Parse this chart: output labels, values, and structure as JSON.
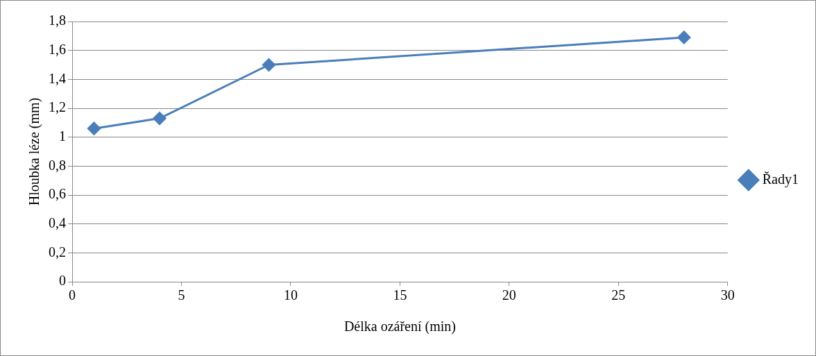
{
  "chart_data": {
    "type": "line",
    "xlabel": "Délka ozáření (min)",
    "ylabel": "Hloubka léze (mm)",
    "x": [
      1,
      4,
      9,
      28
    ],
    "series": [
      {
        "name": "Řady1",
        "color": "#4a7ebb",
        "values": [
          1.06,
          1.13,
          1.5,
          1.69
        ]
      }
    ],
    "xlim": [
      0,
      30
    ],
    "xticks": [
      0,
      5,
      10,
      15,
      20,
      25,
      30
    ],
    "ylim": [
      0,
      1.8
    ],
    "yticks": [
      0,
      {
        "value": 0.2,
        "label": "0,2"
      },
      {
        "value": 0.4,
        "label": "0,4"
      },
      {
        "value": 0.6,
        "label": "0,6"
      },
      {
        "value": 0.8,
        "label": "0,8"
      },
      1,
      {
        "value": 1.2,
        "label": "1,2"
      },
      {
        "value": 1.4,
        "label": "1,4"
      },
      {
        "value": 1.6,
        "label": "1,6"
      },
      {
        "value": 1.8,
        "label": "1,8"
      }
    ],
    "grid": "y",
    "legend": "right",
    "marker": "diamond",
    "line_style": "solid"
  }
}
